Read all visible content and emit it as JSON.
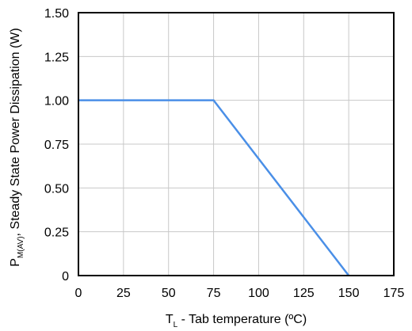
{
  "chart_data": {
    "type": "line",
    "xlabel": {
      "main": "T",
      "subscript": "L",
      "rest": " - Tab temperature (ºC)"
    },
    "ylabel": {
      "main": "P",
      "subscript": "M(AV)",
      "rest": ", Steady State Power Dissipation (W)"
    },
    "xlim": [
      0,
      175
    ],
    "ylim": [
      0,
      1.5
    ],
    "x_ticks": [
      0,
      25,
      50,
      75,
      100,
      125,
      150,
      175
    ],
    "x_tick_labels": [
      "0",
      "25",
      "50",
      "75",
      "100",
      "125",
      "150",
      "175"
    ],
    "y_ticks": [
      0,
      0.25,
      0.5,
      0.75,
      1.0,
      1.25,
      1.5
    ],
    "y_tick_labels": [
      "0",
      "0.25",
      "0.50",
      "0.75",
      "1.00",
      "1.25",
      "1.50"
    ],
    "grid": true,
    "series": [
      {
        "x": [
          0,
          75,
          150
        ],
        "y": [
          1.0,
          1.0,
          0
        ],
        "color": "#4a8fe7"
      }
    ]
  }
}
